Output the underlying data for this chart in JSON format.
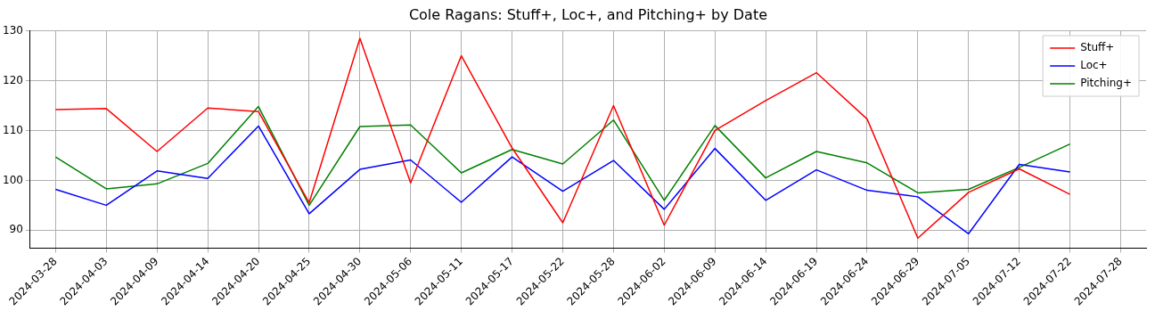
{
  "chart_data": {
    "type": "line",
    "title": "Cole Ragans: Stuff+, Loc+, and Pitching+ by Date",
    "categories": [
      "2024-03-28",
      "2024-04-03",
      "2024-04-09",
      "2024-04-14",
      "2024-04-20",
      "2024-04-25",
      "2024-04-30",
      "2024-05-06",
      "2024-05-11",
      "2024-05-17",
      "2024-05-22",
      "2024-05-28",
      "2024-06-02",
      "2024-06-09",
      "2024-06-14",
      "2024-06-19",
      "2024-06-24",
      "2024-06-29",
      "2024-07-05",
      "2024-07-12",
      "2024-07-22",
      "2024-07-28"
    ],
    "series": [
      {
        "name": "Stuff+",
        "color": "#ff0000",
        "values": [
          114.2,
          114.4,
          105.8,
          114.5,
          113.8,
          95.5,
          128.5,
          99.5,
          125,
          106.5,
          91.5,
          115,
          91,
          110,
          116,
          121.6,
          112.3,
          88.4,
          97.6,
          102.3,
          97.2,
          null
        ]
      },
      {
        "name": "Loc+",
        "color": "#0000ff",
        "values": [
          98.2,
          95,
          101.9,
          100.4,
          110.9,
          93.3,
          102.2,
          104.1,
          95.6,
          104.7,
          97.8,
          104,
          94.2,
          106.4,
          96,
          102.1,
          98,
          96.7,
          89.3,
          103.2,
          101.7,
          null
        ]
      },
      {
        "name": "Pitching+",
        "color": "#008000",
        "values": [
          104.7,
          98.3,
          99.3,
          103.4,
          114.8,
          95,
          110.8,
          111.1,
          101.5,
          106.2,
          103.3,
          112.1,
          96,
          111,
          100.5,
          105.8,
          103.5,
          97.5,
          98.2,
          102.6,
          107.3,
          null
        ]
      }
    ],
    "ylim": [
      86.4,
      130.1
    ],
    "yticks": [
      90,
      100,
      110,
      120,
      130
    ],
    "grid": true,
    "legend": "top right",
    "marker": "none",
    "line_style": "solid"
  }
}
